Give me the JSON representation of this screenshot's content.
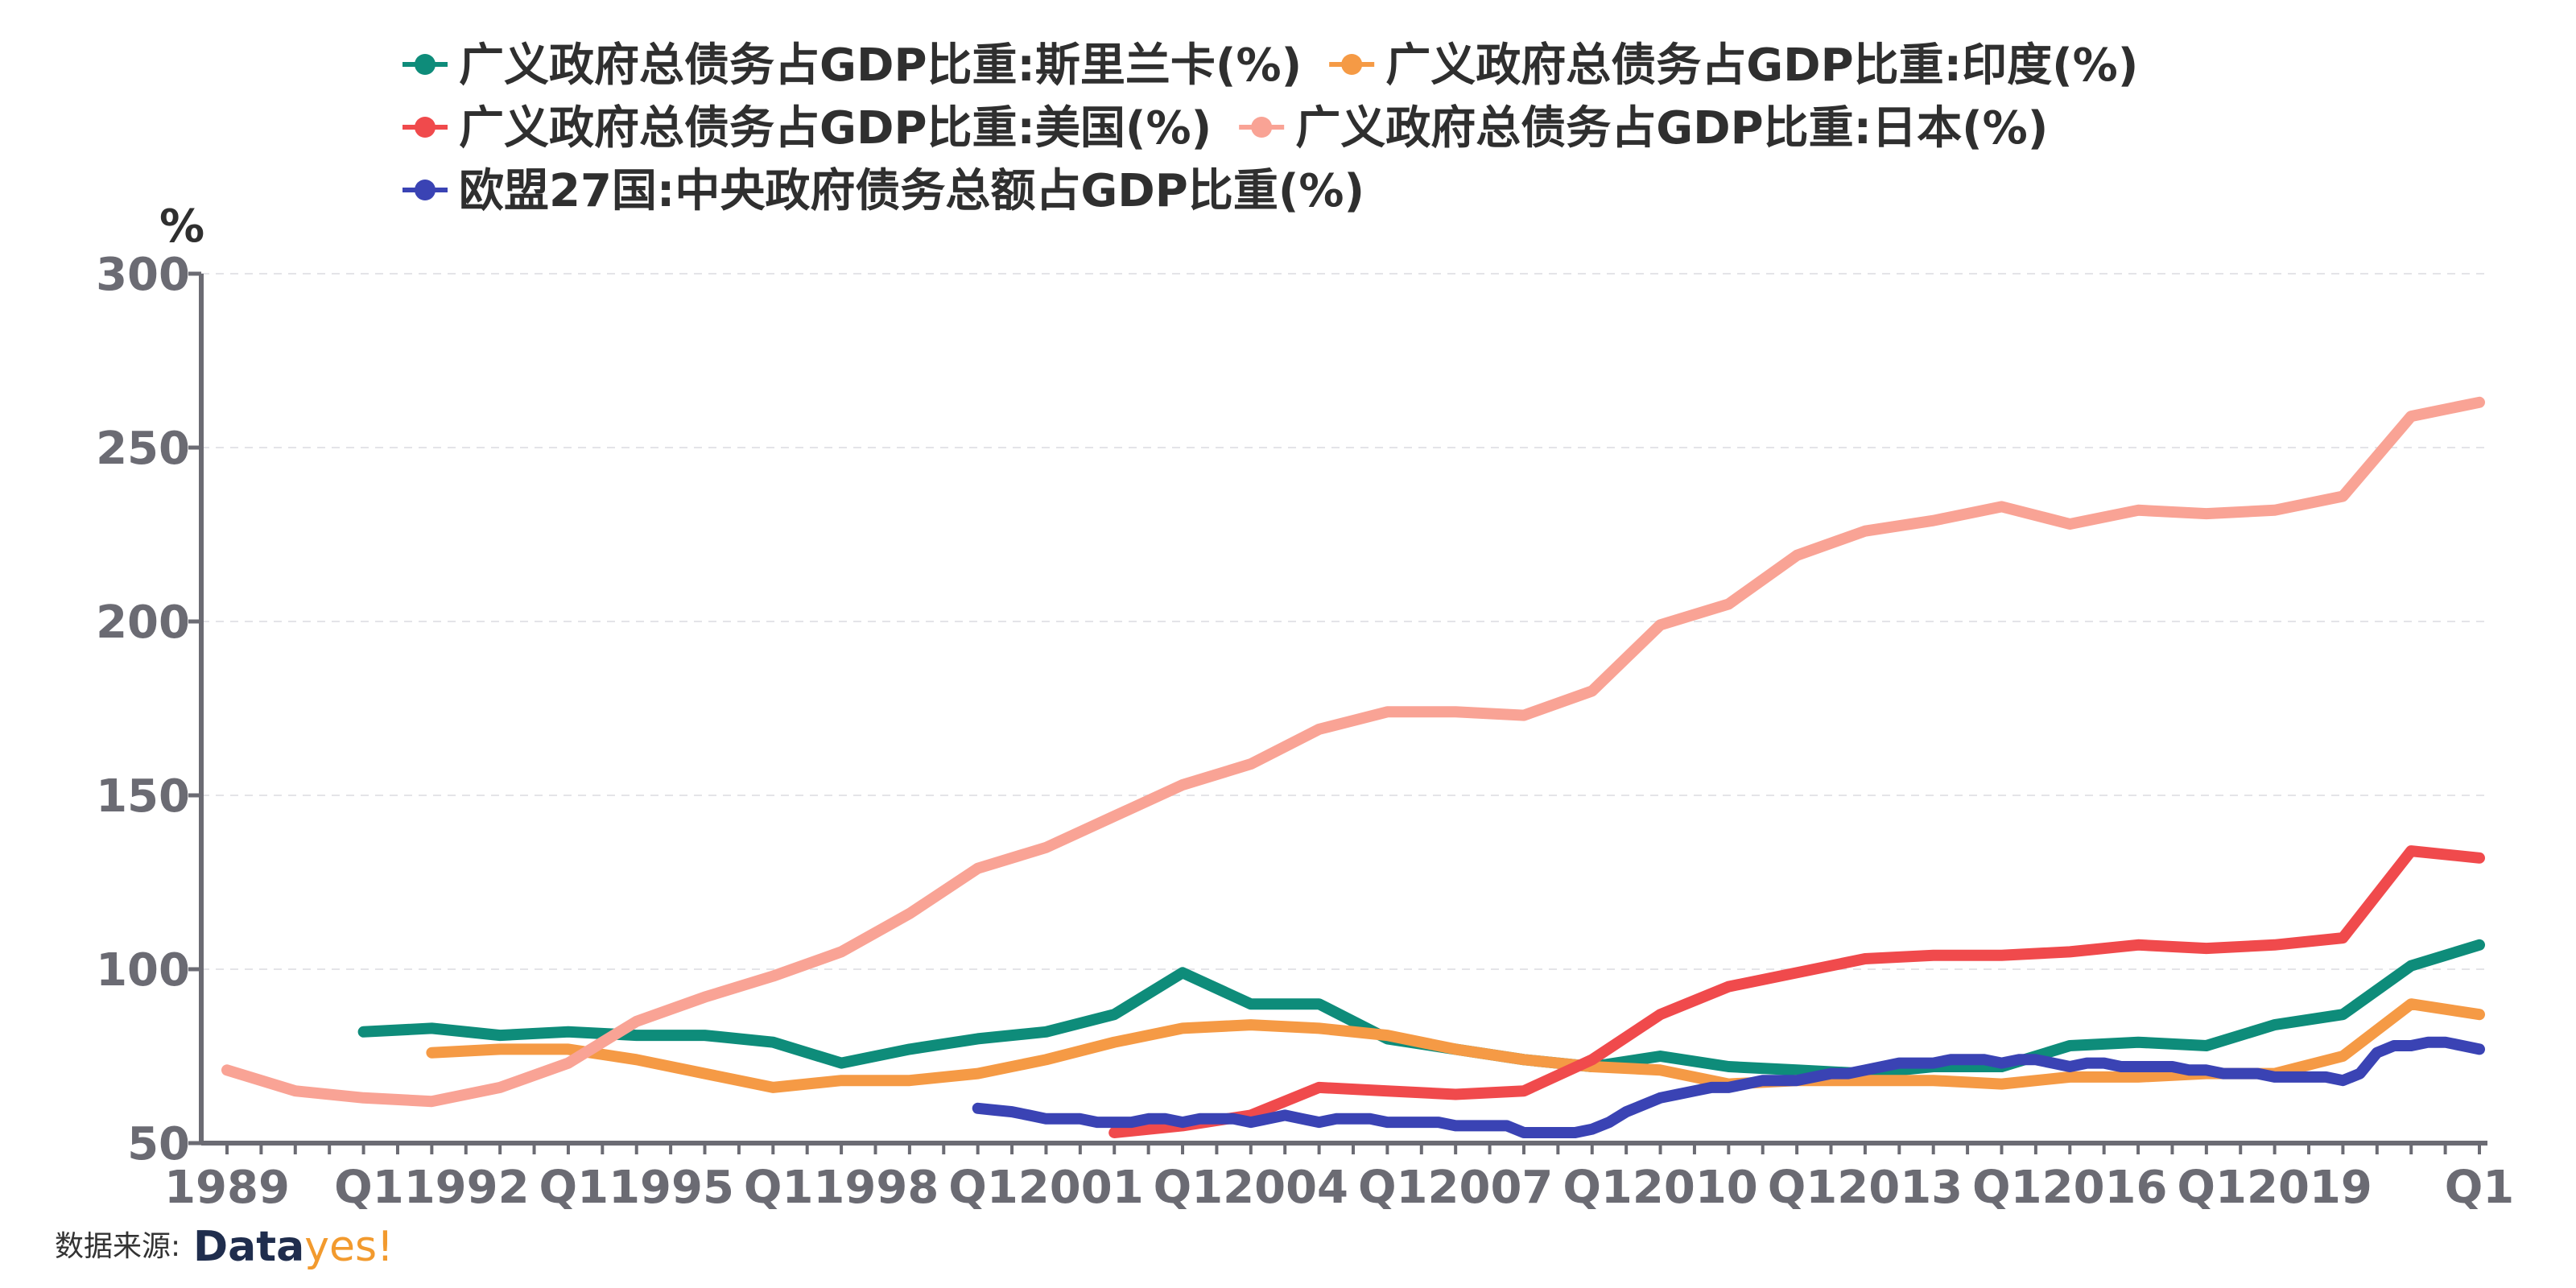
{
  "chart_data": {
    "type": "line",
    "unit": "%",
    "ylim": [
      50,
      300
    ],
    "y_ticks": [
      50,
      100,
      150,
      200,
      250,
      300
    ],
    "x_range": [
      1989,
      2022
    ],
    "x_tick_labels": [
      "1989",
      "Q11992",
      "Q11995",
      "Q11998",
      "Q12001",
      "Q12004",
      "Q12007",
      "Q12010",
      "Q12013",
      "Q12016",
      "Q12019",
      "Q1"
    ],
    "x_tick_positions": [
      1989,
      1992,
      1995,
      1998,
      2001,
      2004,
      2007,
      2010,
      2013,
      2016,
      2019,
      2022
    ],
    "grid": true,
    "legend_position": "top",
    "series": [
      {
        "name": "广义政府总债务占GDP比重:斯里兰卡(%)",
        "color": "#0e8c7a",
        "x": [
          1991,
          1992,
          1993,
          1994,
          1995,
          1996,
          1997,
          1998,
          1999,
          2000,
          2001,
          2002,
          2003,
          2004,
          2005,
          2006,
          2007,
          2008,
          2009,
          2010,
          2011,
          2012,
          2013,
          2014,
          2015,
          2016,
          2017,
          2018,
          2019,
          2020,
          2021,
          2022
        ],
        "y": [
          82,
          83,
          81,
          82,
          81,
          81,
          79,
          73,
          77,
          80,
          82,
          87,
          99,
          90,
          90,
          80,
          77,
          74,
          72,
          75,
          72,
          71,
          70,
          72,
          72,
          78,
          79,
          78,
          84,
          87,
          101,
          107
        ]
      },
      {
        "name": "广义政府总债务占GDP比重:印度(%)",
        "color": "#f59a45",
        "x": [
          1992,
          1993,
          1994,
          1995,
          1996,
          1997,
          1998,
          1999,
          2000,
          2001,
          2002,
          2003,
          2004,
          2005,
          2006,
          2007,
          2008,
          2009,
          2010,
          2011,
          2012,
          2013,
          2014,
          2015,
          2016,
          2017,
          2018,
          2019,
          2020,
          2021,
          2022
        ],
        "y": [
          76,
          77,
          77,
          74,
          70,
          66,
          68,
          68,
          70,
          74,
          79,
          83,
          84,
          83,
          81,
          77,
          74,
          72,
          71,
          67,
          68,
          68,
          68,
          67,
          69,
          69,
          70,
          70,
          75,
          90,
          87
        ]
      },
      {
        "name": "广义政府总债务占GDP比重:美国(%)",
        "color": "#f04a4c",
        "x": [
          2002,
          2003,
          2004,
          2005,
          2006,
          2007,
          2008,
          2009,
          2010,
          2011,
          2012,
          2013,
          2014,
          2015,
          2016,
          2017,
          2018,
          2019,
          2020,
          2021,
          2022
        ],
        "y": [
          53,
          55,
          58,
          66,
          65,
          64,
          65,
          74,
          87,
          95,
          99,
          103,
          104,
          104,
          105,
          107,
          106,
          107,
          109,
          134,
          132
        ]
      },
      {
        "name": "广义政府总债务占GDP比重:日本(%)",
        "color": "#f9a395",
        "x": [
          1989,
          1990,
          1991,
          1992,
          1993,
          1994,
          1995,
          1996,
          1997,
          1998,
          1999,
          2000,
          2001,
          2002,
          2003,
          2004,
          2005,
          2006,
          2007,
          2008,
          2009,
          2010,
          2011,
          2012,
          2013,
          2014,
          2015,
          2016,
          2017,
          2018,
          2019,
          2020,
          2021,
          2022
        ],
        "y": [
          71,
          65,
          63,
          62,
          66,
          73,
          85,
          92,
          98,
          105,
          116,
          129,
          135,
          144,
          153,
          159,
          169,
          174,
          174,
          173,
          180,
          199,
          205,
          219,
          226,
          229,
          233,
          228,
          232,
          231,
          232,
          236,
          259,
          263
        ]
      },
      {
        "name": "欧盟27国:中央政府债务总额占GDP比重(%)",
        "color": "#3a43b4",
        "x": [
          2000.0,
          2000.25,
          2000.5,
          2000.75,
          2001.0,
          2001.25,
          2001.5,
          2001.75,
          2002.0,
          2002.25,
          2002.5,
          2002.75,
          2003.0,
          2003.25,
          2003.5,
          2003.75,
          2004.0,
          2004.25,
          2004.5,
          2004.75,
          2005.0,
          2005.25,
          2005.5,
          2005.75,
          2006.0,
          2006.25,
          2006.5,
          2006.75,
          2007.0,
          2007.25,
          2007.5,
          2007.75,
          2008.0,
          2008.25,
          2008.5,
          2008.75,
          2009.0,
          2009.25,
          2009.5,
          2009.75,
          2010.0,
          2010.25,
          2010.5,
          2010.75,
          2011.0,
          2011.25,
          2011.5,
          2011.75,
          2012.0,
          2012.25,
          2012.5,
          2012.75,
          2013.0,
          2013.25,
          2013.5,
          2013.75,
          2014.0,
          2014.25,
          2014.5,
          2014.75,
          2015.0,
          2015.25,
          2015.5,
          2015.75,
          2016.0,
          2016.25,
          2016.5,
          2016.75,
          2017.0,
          2017.25,
          2017.5,
          2017.75,
          2018.0,
          2018.25,
          2018.5,
          2018.75,
          2019.0,
          2019.25,
          2019.5,
          2019.75,
          2020.0,
          2020.25,
          2020.5,
          2020.75,
          2021.0,
          2021.25,
          2021.5,
          2021.75,
          2022.0
        ],
        "y": [
          60,
          59.5,
          59,
          58,
          57,
          57,
          57,
          56,
          56,
          56,
          57,
          57,
          56,
          57,
          57,
          57,
          56,
          57,
          58,
          57,
          56,
          57,
          57,
          57,
          56,
          56,
          56,
          56,
          55,
          55,
          55,
          55,
          53,
          53,
          53,
          53,
          54,
          56,
          59,
          61,
          63,
          64,
          65,
          66,
          66,
          67,
          68,
          68,
          68,
          69,
          70,
          70,
          71,
          72,
          73,
          73,
          73,
          74,
          74,
          74,
          73,
          74,
          74,
          73,
          72,
          73,
          73,
          72,
          72,
          72,
          72,
          71,
          71,
          70,
          70,
          70,
          69,
          69,
          69,
          69,
          68,
          70,
          76,
          78,
          78,
          79,
          79,
          78,
          77
        ]
      }
    ]
  },
  "source": {
    "label": "数据来源:",
    "brand_part1": "Data",
    "brand_part2": "yes!"
  }
}
